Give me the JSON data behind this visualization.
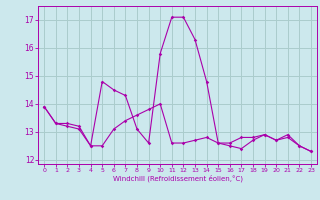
{
  "xlabel": "Windchill (Refroidissement éolien,°C)",
  "background_color": "#cce8ed",
  "grid_color": "#aacccc",
  "line_color": "#aa00aa",
  "xlim": [
    -0.5,
    23.5
  ],
  "ylim": [
    11.85,
    17.5
  ],
  "yticks": [
    12,
    13,
    14,
    15,
    16,
    17
  ],
  "xticks": [
    0,
    1,
    2,
    3,
    4,
    5,
    6,
    7,
    8,
    9,
    10,
    11,
    12,
    13,
    14,
    15,
    16,
    17,
    18,
    19,
    20,
    21,
    22,
    23
  ],
  "series": [
    [
      13.9,
      13.3,
      13.3,
      13.2,
      12.5,
      14.8,
      14.5,
      14.3,
      13.1,
      12.6,
      15.8,
      17.1,
      17.1,
      16.3,
      14.8,
      12.6,
      12.5,
      12.4,
      12.7,
      12.9,
      12.7,
      12.9,
      12.5,
      12.3
    ],
    [
      13.9,
      13.3,
      13.2,
      13.1,
      12.5,
      12.5,
      13.1,
      13.4,
      13.6,
      13.8,
      14.0,
      12.6,
      12.6,
      12.7,
      12.8,
      12.6,
      12.6,
      12.8,
      12.8,
      12.9,
      12.7,
      12.8,
      12.5,
      12.3
    ]
  ]
}
